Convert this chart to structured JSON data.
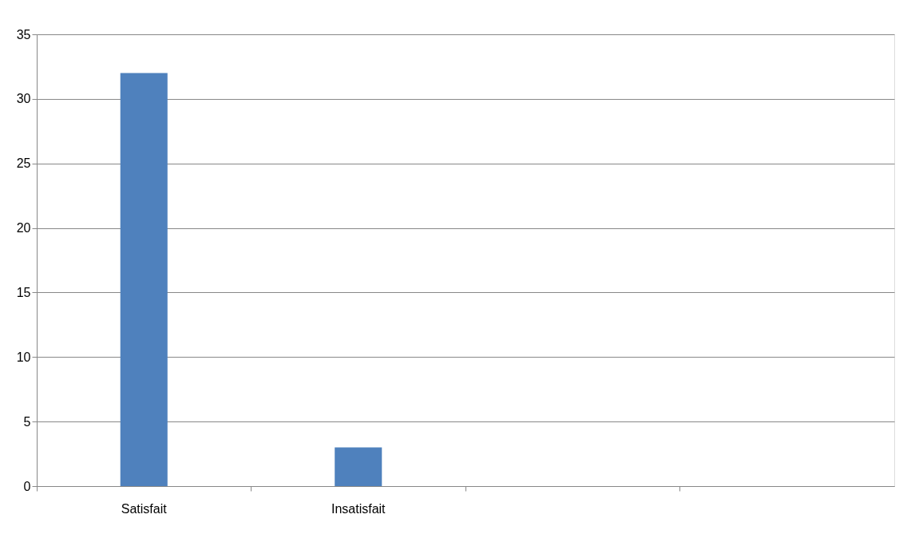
{
  "chart_data": {
    "type": "bar",
    "categories": [
      "Satisfait",
      "Insatisfait",
      null,
      null
    ],
    "values": [
      32,
      3,
      null,
      null
    ],
    "color": "#4f81bd",
    "ylim": [
      0,
      35
    ],
    "yticks": [
      0,
      5,
      10,
      15,
      20,
      25,
      30,
      35
    ],
    "grid": "y"
  }
}
